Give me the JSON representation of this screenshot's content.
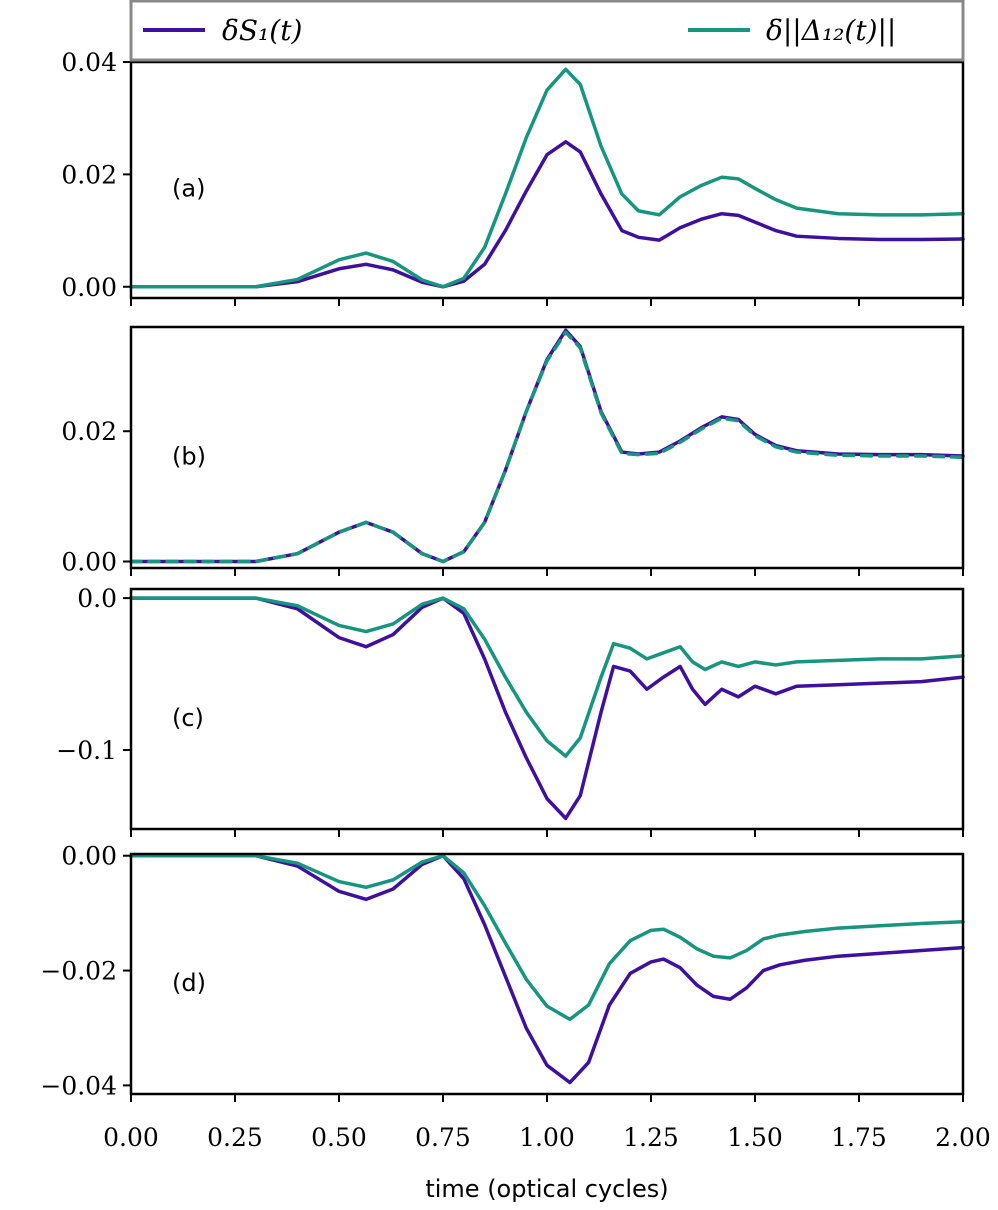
{
  "colors": {
    "s1": "#3f0f9f",
    "delta": "#16957f",
    "axis": "#000000",
    "legend_border": "#888888"
  },
  "legend": {
    "s1_label": "δS₁(t)",
    "delta_label": "δ||Δ₁₂(t)||",
    "placement": "top, spanning full width"
  },
  "xaxis": {
    "label": "time (optical cycles)",
    "tick_labels": [
      "0.00",
      "0.25",
      "0.50",
      "0.75",
      "1.00",
      "1.25",
      "1.50",
      "1.75",
      "2.00"
    ]
  },
  "chart_data": [
    {
      "type": "line",
      "panel_label": "(a)",
      "xlim": [
        0,
        2
      ],
      "ylim": [
        -0.002,
        0.04
      ],
      "yticks": [
        0,
        0.02,
        0.04
      ],
      "ytick_labels": [
        "0.00",
        "0.02",
        "0.04"
      ],
      "series": [
        {
          "name": "δS₁(t)",
          "points": [
            [
              0,
              0
            ],
            [
              0.3,
              0
            ],
            [
              0.4,
              0.0009
            ],
            [
              0.5,
              0.0032
            ],
            [
              0.565,
              0.004
            ],
            [
              0.63,
              0.003
            ],
            [
              0.7,
              0.0008
            ],
            [
              0.75,
              0
            ],
            [
              0.8,
              0.001
            ],
            [
              0.85,
              0.004
            ],
            [
              0.9,
              0.01
            ],
            [
              0.95,
              0.017
            ],
            [
              1.0,
              0.0235
            ],
            [
              1.045,
              0.0258
            ],
            [
              1.08,
              0.024
            ],
            [
              1.13,
              0.0165
            ],
            [
              1.18,
              0.01
            ],
            [
              1.22,
              0.0088
            ],
            [
              1.27,
              0.0083
            ],
            [
              1.32,
              0.0105
            ],
            [
              1.37,
              0.012
            ],
            [
              1.42,
              0.013
            ],
            [
              1.46,
              0.0127
            ],
            [
              1.5,
              0.0115
            ],
            [
              1.55,
              0.01
            ],
            [
              1.6,
              0.009
            ],
            [
              1.7,
              0.0086
            ],
            [
              1.8,
              0.0084
            ],
            [
              1.9,
              0.0084
            ],
            [
              2.0,
              0.0085
            ]
          ]
        },
        {
          "name": "δ||Δ₁₂(t)||",
          "points": [
            [
              0,
              0
            ],
            [
              0.3,
              0
            ],
            [
              0.4,
              0.0013
            ],
            [
              0.5,
              0.0048
            ],
            [
              0.565,
              0.006
            ],
            [
              0.63,
              0.0045
            ],
            [
              0.7,
              0.0012
            ],
            [
              0.75,
              0
            ],
            [
              0.8,
              0.0015
            ],
            [
              0.85,
              0.007
            ],
            [
              0.9,
              0.0165
            ],
            [
              0.95,
              0.0265
            ],
            [
              1.0,
              0.035
            ],
            [
              1.045,
              0.0387
            ],
            [
              1.08,
              0.036
            ],
            [
              1.13,
              0.025
            ],
            [
              1.18,
              0.0165
            ],
            [
              1.22,
              0.0135
            ],
            [
              1.27,
              0.0128
            ],
            [
              1.32,
              0.016
            ],
            [
              1.37,
              0.018
            ],
            [
              1.42,
              0.0195
            ],
            [
              1.46,
              0.0192
            ],
            [
              1.5,
              0.0175
            ],
            [
              1.55,
              0.0155
            ],
            [
              1.6,
              0.014
            ],
            [
              1.7,
              0.013
            ],
            [
              1.8,
              0.0128
            ],
            [
              1.9,
              0.0128
            ],
            [
              2.0,
              0.013
            ]
          ]
        }
      ]
    },
    {
      "type": "line",
      "panel_label": "(b)",
      "xlim": [
        0,
        2
      ],
      "ylim": [
        -0.001,
        0.036
      ],
      "yticks": [
        0,
        0.02
      ],
      "ytick_labels": [
        "0.00",
        "0.02"
      ],
      "series": [
        {
          "name": "δS₁(t)",
          "points": [
            [
              0,
              0
            ],
            [
              0.3,
              0
            ],
            [
              0.4,
              0.0012
            ],
            [
              0.5,
              0.0045
            ],
            [
              0.565,
              0.006
            ],
            [
              0.63,
              0.0045
            ],
            [
              0.7,
              0.0012
            ],
            [
              0.75,
              0
            ],
            [
              0.8,
              0.0015
            ],
            [
              0.85,
              0.006
            ],
            [
              0.9,
              0.014
            ],
            [
              0.95,
              0.023
            ],
            [
              1.0,
              0.031
            ],
            [
              1.045,
              0.0355
            ],
            [
              1.08,
              0.033
            ],
            [
              1.13,
              0.023
            ],
            [
              1.18,
              0.0168
            ],
            [
              1.22,
              0.0165
            ],
            [
              1.27,
              0.0168
            ],
            [
              1.32,
              0.0185
            ],
            [
              1.37,
              0.0205
            ],
            [
              1.42,
              0.0222
            ],
            [
              1.46,
              0.0218
            ],
            [
              1.5,
              0.0195
            ],
            [
              1.55,
              0.0178
            ],
            [
              1.6,
              0.017
            ],
            [
              1.7,
              0.0165
            ],
            [
              1.8,
              0.0164
            ],
            [
              1.9,
              0.0164
            ],
            [
              2.0,
              0.0162
            ]
          ]
        },
        {
          "name": "δ||Δ₁₂(t)||",
          "points": [
            [
              0,
              0
            ],
            [
              0.3,
              0
            ],
            [
              0.4,
              0.0012
            ],
            [
              0.5,
              0.0045
            ],
            [
              0.565,
              0.006
            ],
            [
              0.63,
              0.0045
            ],
            [
              0.7,
              0.0012
            ],
            [
              0.75,
              0
            ],
            [
              0.8,
              0.0015
            ],
            [
              0.85,
              0.006
            ],
            [
              0.9,
              0.014
            ],
            [
              0.95,
              0.023
            ],
            [
              1.0,
              0.0308
            ],
            [
              1.045,
              0.0352
            ],
            [
              1.08,
              0.0328
            ],
            [
              1.13,
              0.0228
            ],
            [
              1.18,
              0.0166
            ],
            [
              1.22,
              0.0164
            ],
            [
              1.27,
              0.0166
            ],
            [
              1.32,
              0.0183
            ],
            [
              1.37,
              0.0203
            ],
            [
              1.42,
              0.022
            ],
            [
              1.46,
              0.0216
            ],
            [
              1.5,
              0.0193
            ],
            [
              1.55,
              0.0176
            ],
            [
              1.6,
              0.0168
            ],
            [
              1.7,
              0.0163
            ],
            [
              1.8,
              0.0162
            ],
            [
              1.9,
              0.0162
            ],
            [
              2.0,
              0.016
            ]
          ]
        }
      ]
    },
    {
      "type": "line",
      "panel_label": "(c)",
      "xlim": [
        0,
        2
      ],
      "ylim": [
        -0.152,
        0.006
      ],
      "yticks": [
        0,
        -0.1
      ],
      "ytick_labels": [
        "0.0",
        "−0.1"
      ],
      "series": [
        {
          "name": "δS₁(t)",
          "points": [
            [
              0,
              0
            ],
            [
              0.3,
              0
            ],
            [
              0.4,
              -0.007
            ],
            [
              0.5,
              -0.026
            ],
            [
              0.565,
              -0.032
            ],
            [
              0.63,
              -0.024
            ],
            [
              0.7,
              -0.006
            ],
            [
              0.75,
              0
            ],
            [
              0.8,
              -0.01
            ],
            [
              0.85,
              -0.04
            ],
            [
              0.9,
              -0.075
            ],
            [
              0.95,
              -0.105
            ],
            [
              1.0,
              -0.132
            ],
            [
              1.045,
              -0.145
            ],
            [
              1.08,
              -0.13
            ],
            [
              1.13,
              -0.075
            ],
            [
              1.16,
              -0.045
            ],
            [
              1.2,
              -0.048
            ],
            [
              1.24,
              -0.06
            ],
            [
              1.28,
              -0.052
            ],
            [
              1.32,
              -0.045
            ],
            [
              1.35,
              -0.06
            ],
            [
              1.38,
              -0.07
            ],
            [
              1.42,
              -0.06
            ],
            [
              1.46,
              -0.065
            ],
            [
              1.5,
              -0.058
            ],
            [
              1.55,
              -0.063
            ],
            [
              1.6,
              -0.058
            ],
            [
              1.7,
              -0.057
            ],
            [
              1.8,
              -0.056
            ],
            [
              1.9,
              -0.055
            ],
            [
              2.0,
              -0.052
            ]
          ]
        },
        {
          "name": "δ||Δ₁₂(t)||",
          "points": [
            [
              0,
              0
            ],
            [
              0.3,
              0
            ],
            [
              0.4,
              -0.005
            ],
            [
              0.5,
              -0.018
            ],
            [
              0.565,
              -0.022
            ],
            [
              0.63,
              -0.017
            ],
            [
              0.7,
              -0.004
            ],
            [
              0.75,
              0
            ],
            [
              0.8,
              -0.007
            ],
            [
              0.85,
              -0.027
            ],
            [
              0.9,
              -0.052
            ],
            [
              0.95,
              -0.075
            ],
            [
              1.0,
              -0.094
            ],
            [
              1.045,
              -0.104
            ],
            [
              1.08,
              -0.092
            ],
            [
              1.13,
              -0.052
            ],
            [
              1.16,
              -0.03
            ],
            [
              1.2,
              -0.033
            ],
            [
              1.24,
              -0.04
            ],
            [
              1.28,
              -0.036
            ],
            [
              1.32,
              -0.032
            ],
            [
              1.35,
              -0.042
            ],
            [
              1.38,
              -0.047
            ],
            [
              1.42,
              -0.042
            ],
            [
              1.46,
              -0.045
            ],
            [
              1.5,
              -0.042
            ],
            [
              1.55,
              -0.044
            ],
            [
              1.6,
              -0.042
            ],
            [
              1.7,
              -0.041
            ],
            [
              1.8,
              -0.04
            ],
            [
              1.9,
              -0.04
            ],
            [
              2.0,
              -0.038
            ]
          ]
        }
      ]
    },
    {
      "type": "line",
      "panel_label": "(d)",
      "xlim": [
        0,
        2
      ],
      "ylim": [
        -0.0415,
        0.0003
      ],
      "yticks": [
        0,
        -0.02,
        -0.04
      ],
      "ytick_labels": [
        "0.00",
        "−0.02",
        "−0.04"
      ],
      "series": [
        {
          "name": "δS₁(t)",
          "points": [
            [
              0,
              0
            ],
            [
              0.3,
              0
            ],
            [
              0.4,
              -0.0018
            ],
            [
              0.5,
              -0.0062
            ],
            [
              0.565,
              -0.0076
            ],
            [
              0.63,
              -0.0058
            ],
            [
              0.7,
              -0.0015
            ],
            [
              0.75,
              0
            ],
            [
              0.8,
              -0.004
            ],
            [
              0.85,
              -0.012
            ],
            [
              0.9,
              -0.021
            ],
            [
              0.95,
              -0.03
            ],
            [
              1.0,
              -0.0365
            ],
            [
              1.055,
              -0.0395
            ],
            [
              1.1,
              -0.036
            ],
            [
              1.15,
              -0.026
            ],
            [
              1.2,
              -0.0205
            ],
            [
              1.25,
              -0.0185
            ],
            [
              1.28,
              -0.018
            ],
            [
              1.32,
              -0.0195
            ],
            [
              1.36,
              -0.0225
            ],
            [
              1.4,
              -0.0245
            ],
            [
              1.44,
              -0.025
            ],
            [
              1.48,
              -0.023
            ],
            [
              1.52,
              -0.02
            ],
            [
              1.56,
              -0.019
            ],
            [
              1.62,
              -0.0182
            ],
            [
              1.7,
              -0.0175
            ],
            [
              1.8,
              -0.017
            ],
            [
              1.9,
              -0.0165
            ],
            [
              2.0,
              -0.016
            ]
          ]
        },
        {
          "name": "δ||Δ₁₂(t)||",
          "points": [
            [
              0,
              0
            ],
            [
              0.3,
              0
            ],
            [
              0.4,
              -0.0013
            ],
            [
              0.5,
              -0.0045
            ],
            [
              0.565,
              -0.0055
            ],
            [
              0.63,
              -0.0042
            ],
            [
              0.7,
              -0.0011
            ],
            [
              0.75,
              0
            ],
            [
              0.8,
              -0.003
            ],
            [
              0.85,
              -0.0087
            ],
            [
              0.9,
              -0.0152
            ],
            [
              0.95,
              -0.0215
            ],
            [
              1.0,
              -0.0262
            ],
            [
              1.055,
              -0.0285
            ],
            [
              1.1,
              -0.026
            ],
            [
              1.15,
              -0.0188
            ],
            [
              1.2,
              -0.0148
            ],
            [
              1.25,
              -0.013
            ],
            [
              1.28,
              -0.0128
            ],
            [
              1.32,
              -0.0142
            ],
            [
              1.36,
              -0.0162
            ],
            [
              1.4,
              -0.0175
            ],
            [
              1.44,
              -0.0178
            ],
            [
              1.48,
              -0.0165
            ],
            [
              1.52,
              -0.0145
            ],
            [
              1.56,
              -0.0138
            ],
            [
              1.62,
              -0.0132
            ],
            [
              1.7,
              -0.0126
            ],
            [
              1.8,
              -0.0122
            ],
            [
              1.9,
              -0.0118
            ],
            [
              2.0,
              -0.0115
            ]
          ]
        }
      ]
    }
  ]
}
